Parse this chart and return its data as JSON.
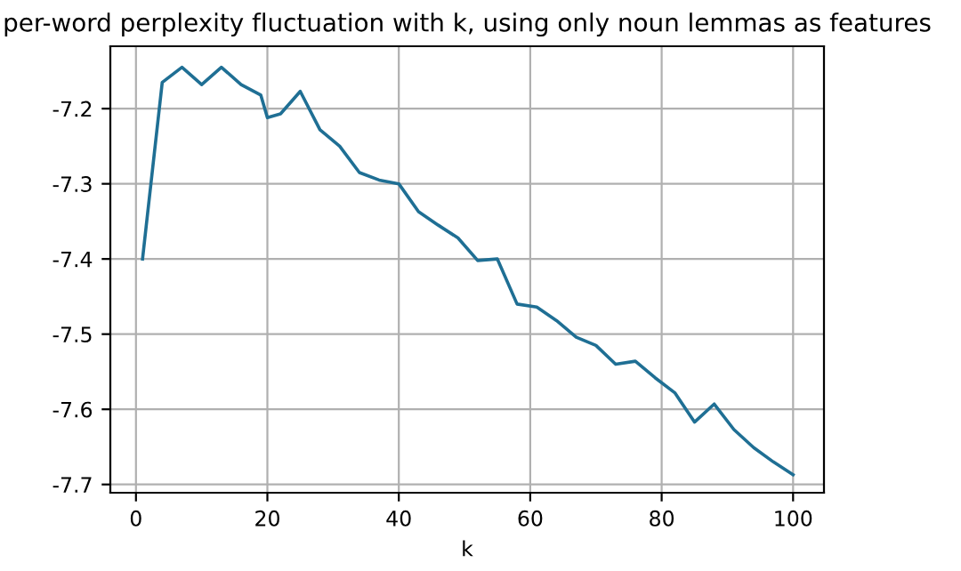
{
  "chart_data": {
    "type": "line",
    "title": "per-word perplexity fluctuation with k, using only noun lemmas as features",
    "xlabel": "k",
    "x": [
      1,
      4,
      7,
      10,
      13,
      16,
      19,
      20,
      22,
      25,
      28,
      31,
      34,
      37,
      40,
      43,
      46,
      49,
      52,
      55,
      58,
      61,
      64,
      67,
      70,
      73,
      76,
      79,
      82,
      85,
      88,
      91,
      94,
      97,
      100
    ],
    "series": [
      {
        "color": "#1f6f94",
        "values": [
          -7.4,
          -7.165,
          -7.145,
          -7.168,
          -7.145,
          -7.168,
          -7.182,
          -7.212,
          -7.207,
          -7.177,
          -7.228,
          -7.25,
          -7.285,
          -7.295,
          -7.3,
          -7.337,
          -7.355,
          -7.372,
          -7.402,
          -7.4,
          -7.46,
          -7.464,
          -7.482,
          -7.504,
          -7.515,
          -7.54,
          -7.536,
          -7.558,
          -7.578,
          -7.617,
          -7.593,
          -7.627,
          -7.651,
          -7.67,
          -7.687
        ]
      }
    ],
    "xlim": [
      -3.9,
      104.7
    ],
    "ylim": [
      -7.711,
      -7.117
    ],
    "xticks": [
      0,
      20,
      40,
      60,
      80,
      100
    ],
    "yticks": [
      -7.7,
      -7.6,
      -7.5,
      -7.4,
      -7.3,
      -7.2
    ],
    "grid": true,
    "marker": "none",
    "line_style": "solid"
  }
}
